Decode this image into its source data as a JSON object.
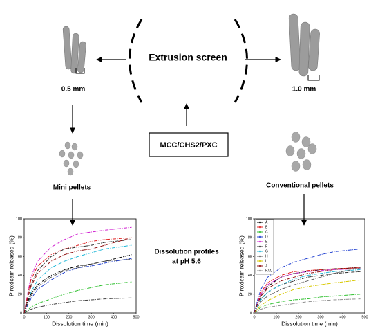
{
  "screen_label": "Extrusion screen",
  "left_size": "0.5 mm",
  "right_size": "1.0 mm",
  "left_product": "Mini pellets",
  "right_product": "Conventional pellets",
  "formulation": "MCC/CHS2/PXC",
  "dissolution_note": [
    "Dissolution profiles",
    "at pH 5.6"
  ],
  "charts": [
    {
      "type": "line",
      "ylabel": "Piroxicam released (%)",
      "xlabel": "Dissolution time (min)",
      "xlim": [
        0,
        500
      ],
      "xticks": [
        0,
        100,
        200,
        300,
        400,
        500
      ],
      "ylim": [
        0,
        100
      ],
      "yticks": [
        0,
        20,
        40,
        60,
        80,
        100
      ],
      "x": [
        0,
        15,
        30,
        60,
        120,
        180,
        240,
        300,
        360,
        480
      ],
      "series": [
        {
          "color": "#d020d0",
          "values": [
            0,
            20,
            38,
            55,
            70,
            78,
            84,
            86,
            88,
            91
          ]
        },
        {
          "color": "#e02020",
          "values": [
            0,
            18,
            35,
            50,
            62,
            68,
            72,
            76,
            78,
            80
          ]
        },
        {
          "color": "#303030",
          "values": [
            0,
            15,
            30,
            45,
            60,
            68,
            70,
            72,
            75,
            78
          ]
        },
        {
          "color": "#20b8d8",
          "values": [
            0,
            10,
            22,
            35,
            48,
            55,
            60,
            64,
            68,
            72
          ]
        },
        {
          "color": "#000000",
          "values": [
            0,
            12,
            20,
            30,
            40,
            46,
            50,
            52,
            55,
            62
          ]
        },
        {
          "color": "#1f3fd0",
          "values": [
            0,
            8,
            15,
            25,
            35,
            43,
            48,
            50,
            53,
            58
          ]
        },
        {
          "color": "#505050",
          "values": [
            0,
            10,
            18,
            28,
            38,
            45,
            48,
            52,
            55,
            57
          ]
        },
        {
          "color": "#30c030",
          "values": [
            0,
            3,
            6,
            10,
            15,
            20,
            24,
            27,
            30,
            33
          ]
        },
        {
          "color": "#404040",
          "values": [
            0,
            2,
            4,
            6,
            9,
            11,
            13,
            14,
            15,
            16
          ]
        },
        {
          "color": "#901010",
          "values": [
            0,
            15,
            28,
            42,
            55,
            62,
            66,
            68,
            72,
            80
          ]
        }
      ]
    },
    {
      "type": "line",
      "ylabel": "Piroxicam released (%)",
      "xlabel": "Dissolution time (min)",
      "xlim": [
        0,
        500
      ],
      "xticks": [
        0,
        100,
        200,
        300,
        400,
        500
      ],
      "ylim": [
        0,
        100
      ],
      "yticks": [
        0,
        20,
        40,
        60,
        80,
        100
      ],
      "legend": "top-left",
      "x": [
        0,
        15,
        30,
        60,
        120,
        180,
        240,
        300,
        360,
        480
      ],
      "series": [
        {
          "name": "A",
          "color": "#000000",
          "values": [
            0,
            10,
            18,
            28,
            38,
            42,
            44,
            46,
            47,
            48
          ]
        },
        {
          "name": "B",
          "color": "#e02020",
          "values": [
            0,
            12,
            22,
            32,
            40,
            44,
            45,
            46,
            47,
            48
          ]
        },
        {
          "name": "C",
          "color": "#30c030",
          "values": [
            0,
            3,
            6,
            9,
            12,
            14,
            15,
            17,
            18,
            20
          ]
        },
        {
          "name": "D",
          "color": "#1f3fd0",
          "values": [
            0,
            14,
            25,
            38,
            48,
            54,
            58,
            62,
            65,
            68
          ]
        },
        {
          "name": "E",
          "color": "#d020d0",
          "values": [
            0,
            10,
            20,
            30,
            38,
            42,
            44,
            45,
            46,
            47
          ]
        },
        {
          "name": "F",
          "color": "#303030",
          "values": [
            0,
            8,
            15,
            22,
            30,
            34,
            38,
            40,
            42,
            44
          ]
        },
        {
          "name": "G",
          "color": "#20b8d8",
          "values": [
            0,
            8,
            14,
            22,
            30,
            36,
            40,
            42,
            44,
            46
          ]
        },
        {
          "name": "H",
          "color": "#606060",
          "values": [
            0,
            6,
            12,
            18,
            25,
            30,
            34,
            38,
            42,
            48
          ]
        },
        {
          "name": "I",
          "color": "#d8c800",
          "values": [
            0,
            4,
            8,
            13,
            20,
            25,
            28,
            30,
            32,
            35
          ]
        },
        {
          "name": "J",
          "color": "#901010",
          "values": [
            0,
            10,
            18,
            26,
            34,
            38,
            42,
            44,
            46,
            49
          ]
        },
        {
          "name": "PXC",
          "color": "#909090",
          "values": [
            0,
            2,
            4,
            6,
            8,
            10,
            12,
            13,
            14,
            15
          ]
        }
      ]
    }
  ]
}
